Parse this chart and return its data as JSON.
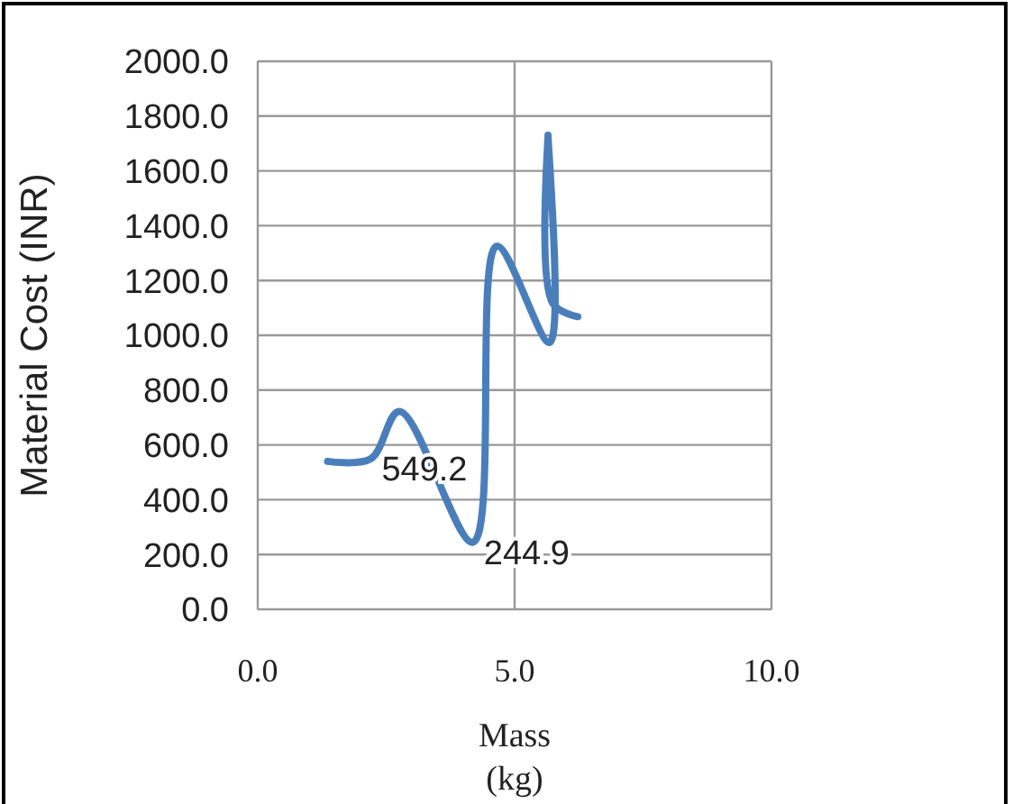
{
  "chart_data": {
    "type": "line",
    "xlabel": "Mass (kg)",
    "ylabel": "Material Cost (INR)",
    "x": [
      1.36,
      2.2,
      2.76,
      4.19,
      4.65,
      5.68,
      5.65,
      5.74,
      6.23
    ],
    "series": [
      {
        "color": "#4a7ebb",
        "values": [
          540,
          549.2,
          722,
          244.9,
          1325,
          974,
          1730,
          1117,
          1068
        ],
        "value_labels": [
          null,
          "549.2",
          null,
          "244.9",
          null,
          null,
          null,
          null,
          null
        ]
      }
    ],
    "xlim": [
      0,
      10
    ],
    "xticks": [
      {
        "value": 0,
        "label": "0.0"
      },
      {
        "value": 5,
        "label": "5.0"
      },
      {
        "value": 10,
        "label": "10.0"
      }
    ],
    "ylim": [
      0,
      2000
    ],
    "yticks": [
      {
        "value": 0,
        "label": "0.0"
      },
      {
        "value": 200,
        "label": "200.0"
      },
      {
        "value": 400,
        "label": "400.0"
      },
      {
        "value": 600,
        "label": "600.0"
      },
      {
        "value": 800,
        "label": "800.0"
      },
      {
        "value": 1000,
        "label": "1000.0"
      },
      {
        "value": 1200,
        "label": "1200.0"
      },
      {
        "value": 1400,
        "label": "1400.0"
      },
      {
        "value": 1600,
        "label": "1600.0"
      },
      {
        "value": 1800,
        "label": "1800.0"
      },
      {
        "value": 2000,
        "label": "2000.0"
      }
    ],
    "grid": true,
    "marker": "none",
    "line_style": "solid"
  }
}
